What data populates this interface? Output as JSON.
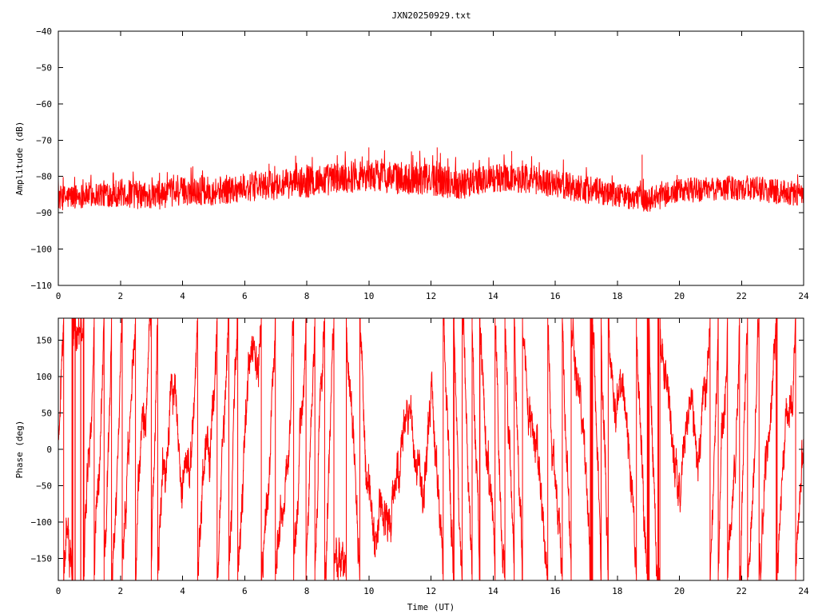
{
  "title": "JXN20250929.txt",
  "colors": {
    "series": "#ff0000",
    "axes": "#000000",
    "background": "#ffffff"
  },
  "chart_data": [
    {
      "type": "line",
      "xlabel": "",
      "ylabel": "Amplitude (dB)",
      "xlim": [
        0,
        24
      ],
      "ylim": [
        -110,
        -40
      ],
      "xticks": [
        0,
        2,
        4,
        6,
        8,
        10,
        12,
        14,
        16,
        18,
        20,
        22,
        24
      ],
      "yticks": [
        -110,
        -100,
        -90,
        -80,
        -70,
        -60,
        -50,
        -40
      ],
      "grid": false,
      "legend": "none",
      "series": [
        {
          "color": "#ff0000",
          "envelope": {
            "x": [
              0,
              1,
              2,
              3,
              4,
              5,
              6,
              7,
              8,
              9,
              10,
              11,
              12,
              13,
              14,
              15,
              16,
              17,
              18,
              19,
              20,
              21,
              22,
              23,
              24
            ],
            "mean": [
              -86,
              -85,
              -84.5,
              -85.5,
              -84,
              -84,
              -83,
              -82.5,
              -81.5,
              -80.5,
              -79.5,
              -80.5,
              -81,
              -82,
              -80.5,
              -80.5,
              -82,
              -83.5,
              -85,
              -86.5,
              -84,
              -83.5,
              -83,
              -84,
              -85
            ],
            "spread": [
              3.5,
              3.5,
              4,
              4,
              4,
              4,
              4,
              4,
              4.5,
              4.5,
              4.5,
              4.5,
              4.5,
              4.5,
              4,
              4,
              4,
              4,
              3.5,
              3.5,
              3.5,
              3.5,
              3.5,
              3.5,
              3.5
            ]
          },
          "peaks": [
            {
              "x": 18.8,
              "y": -74
            },
            {
              "x": 10,
              "y": -72
            },
            {
              "x": 12.2,
              "y": -72
            },
            {
              "x": 14.6,
              "y": -73
            }
          ]
        }
      ]
    },
    {
      "type": "line",
      "xlabel": "Time (UT)",
      "ylabel": "Phase (deg)",
      "xlim": [
        0,
        24
      ],
      "ylim": [
        -180,
        180
      ],
      "xticks": [
        0,
        2,
        4,
        6,
        8,
        10,
        12,
        14,
        16,
        18,
        20,
        22,
        24
      ],
      "yticks": [
        -150,
        -100,
        -50,
        0,
        50,
        100,
        150
      ],
      "grid": false,
      "legend": "none",
      "series": [
        {
          "color": "#ff0000",
          "wrap": [
            -180,
            180
          ],
          "drift_deg_per_hour": 620,
          "noise_deg": 40
        }
      ]
    }
  ]
}
